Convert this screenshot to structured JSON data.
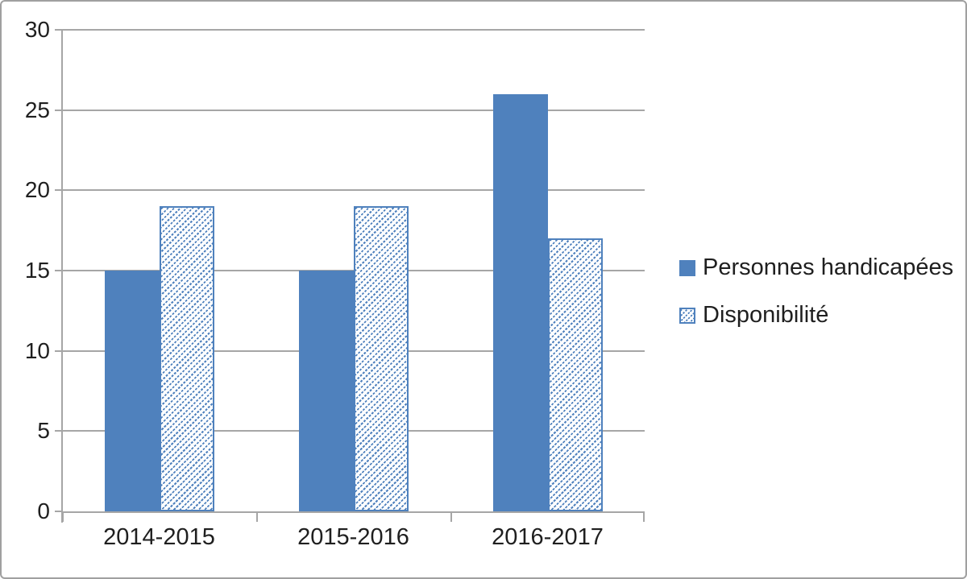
{
  "chart_data": {
    "type": "bar",
    "categories": [
      "2014-2015",
      "2015-2016",
      "2016-2017"
    ],
    "series": [
      {
        "name": "Personnes handicapées",
        "pattern": "solid",
        "values": [
          15,
          15,
          26
        ]
      },
      {
        "name": "Disponibilité",
        "pattern": "hatched",
        "values": [
          19,
          19,
          17
        ]
      }
    ],
    "title": "",
    "xlabel": "",
    "ylabel": "",
    "ylim": [
      0,
      30
    ],
    "yticks": [
      0,
      5,
      10,
      15,
      20,
      25,
      30
    ],
    "grid": true,
    "legend_position": "right-middle"
  },
  "colors": {
    "series_solid": "#4f81bd",
    "series_hatch_line": "#4f81bd",
    "gridline": "#a6a6a6",
    "axis": "#a6a6a6",
    "text": "#1f1f1f",
    "frame_border": "#a0a0a0",
    "background": "#ffffff"
  }
}
